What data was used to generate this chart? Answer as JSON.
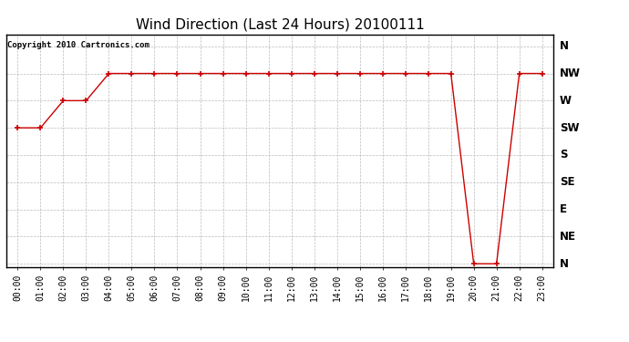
{
  "title": "Wind Direction (Last 24 Hours) 20100111",
  "copyright_text": "Copyright 2010 Cartronics.com",
  "background_color": "#ffffff",
  "plot_bg_color": "#ffffff",
  "line_color": "#cc0000",
  "marker": "+",
  "marker_size": 5,
  "marker_color": "#cc0000",
  "grid_color": "#bbbbbb",
  "x_labels": [
    "00:00",
    "01:00",
    "02:00",
    "03:00",
    "04:00",
    "05:00",
    "06:00",
    "07:00",
    "08:00",
    "09:00",
    "10:00",
    "11:00",
    "12:00",
    "13:00",
    "14:00",
    "15:00",
    "16:00",
    "17:00",
    "18:00",
    "19:00",
    "20:00",
    "21:00",
    "22:00",
    "23:00"
  ],
  "y_ticks": [
    0,
    45,
    90,
    135,
    180,
    225,
    270,
    315,
    360
  ],
  "y_labels": [
    "N",
    "NE",
    "E",
    "SE",
    "S",
    "SW",
    "W",
    "NW",
    "N"
  ],
  "y_data": [
    225,
    225,
    270,
    270,
    315,
    315,
    315,
    315,
    315,
    315,
    315,
    315,
    315,
    315,
    315,
    315,
    315,
    315,
    315,
    315,
    0,
    0,
    315,
    315
  ],
  "ylim": [
    -5,
    380
  ],
  "xlim": [
    -0.5,
    23.5
  ],
  "title_fontsize": 11,
  "tick_fontsize": 7,
  "copyright_fontsize": 6.5
}
